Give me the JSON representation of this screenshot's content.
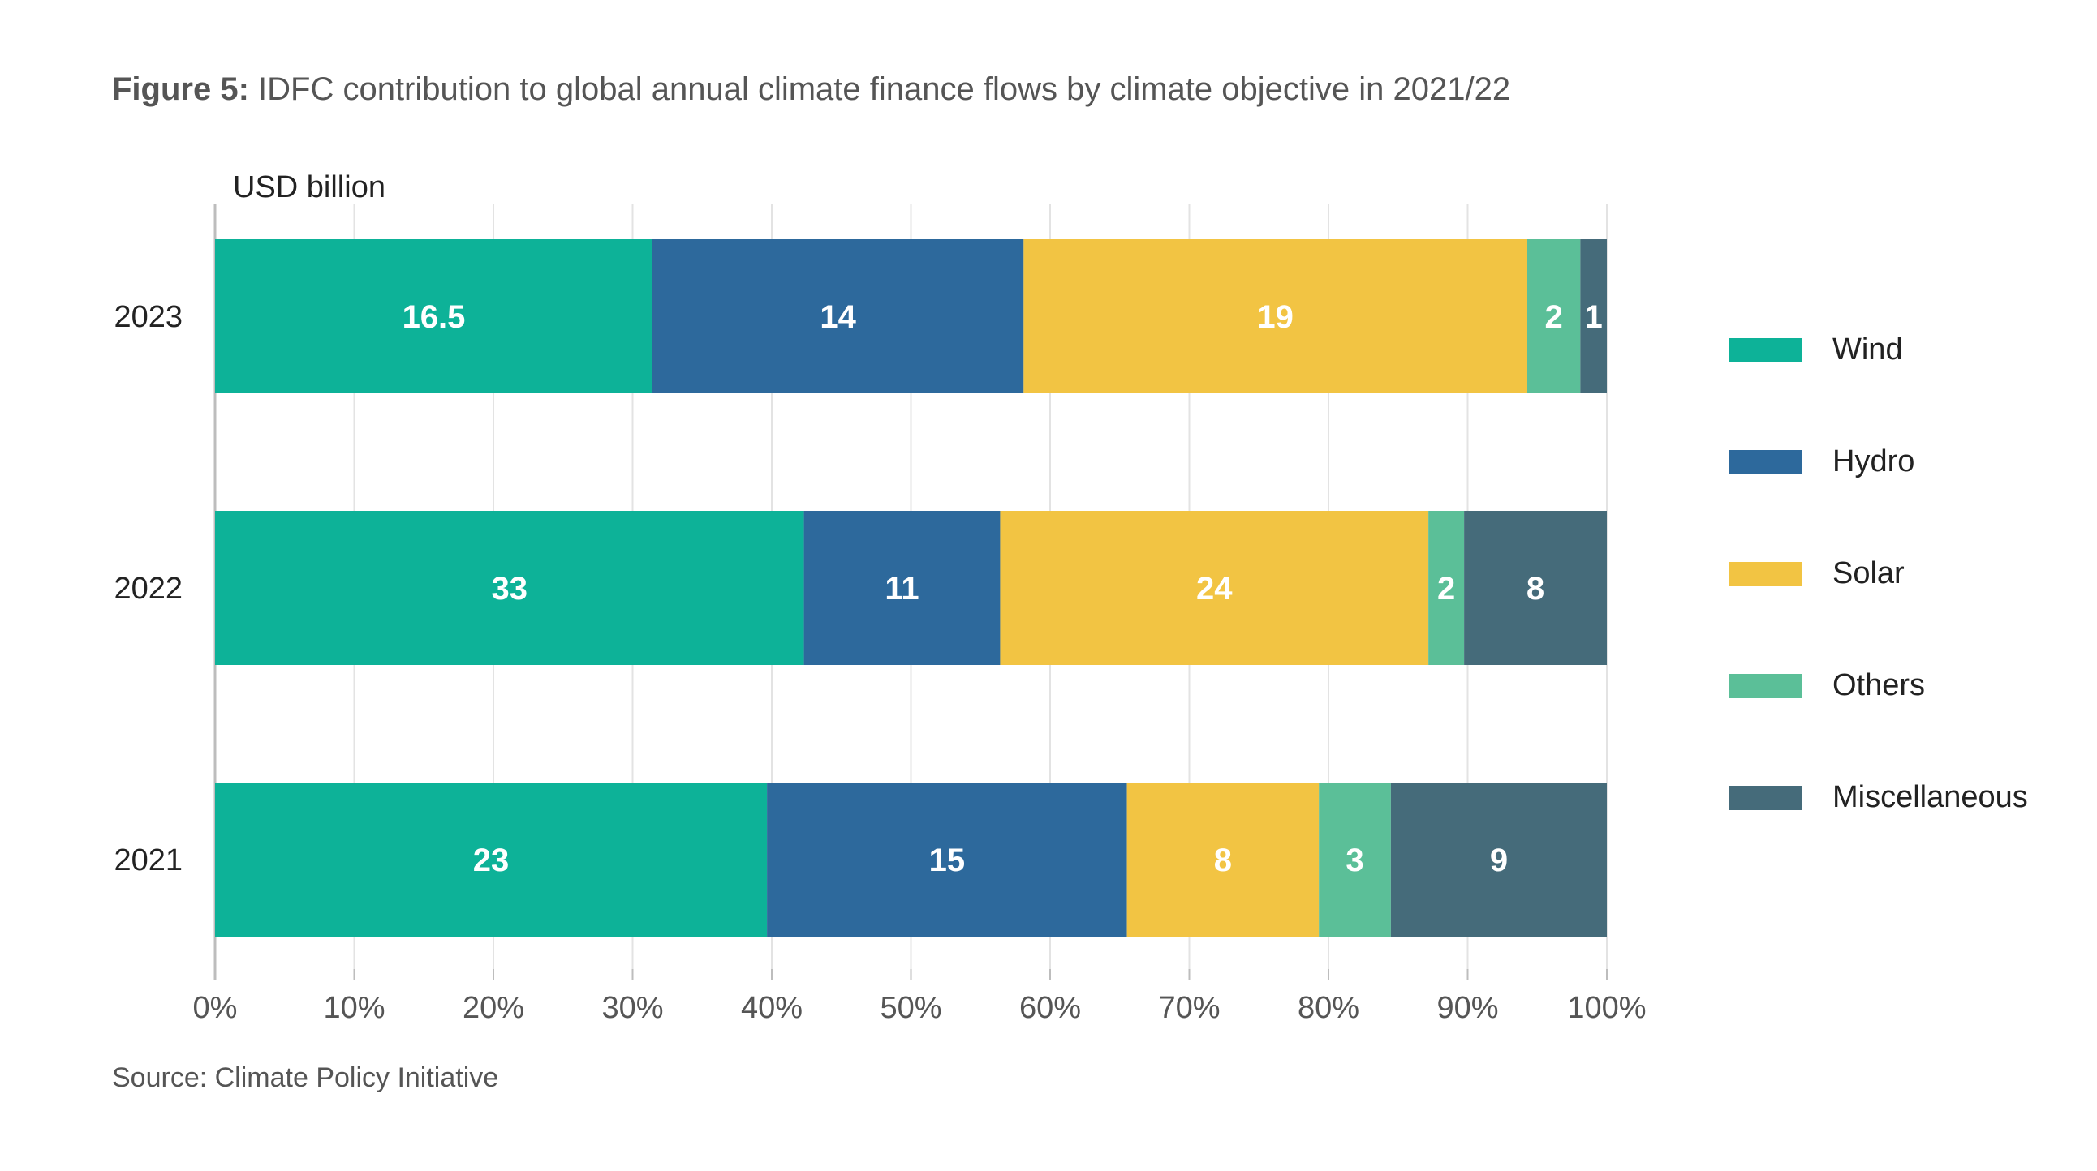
{
  "figure": {
    "label": "Figure 5:",
    "title": " IDFC contribution to global annual climate finance flows by climate objective in 2021/22",
    "source": "Source: Climate Policy Initiative"
  },
  "chart_data": {
    "type": "bar",
    "orientation": "horizontal",
    "stacked": "percent",
    "ylabel": "USD billion",
    "categories": [
      "2023",
      "2022",
      "2021"
    ],
    "series": [
      {
        "name": "Wind",
        "color": "#0db298",
        "values": [
          16.5,
          33,
          23
        ]
      },
      {
        "name": "Hydro",
        "color": "#2d699c",
        "values": [
          14,
          11,
          15
        ]
      },
      {
        "name": "Solar",
        "color": "#f2c443",
        "values": [
          19,
          24,
          8
        ]
      },
      {
        "name": "Others",
        "color": "#5bbf98",
        "values": [
          2,
          2,
          3
        ]
      },
      {
        "name": "Miscellaneous",
        "color": "#456b7a",
        "values": [
          1,
          8,
          9
        ]
      }
    ],
    "data_labels": [
      [
        "16.5",
        "14",
        "19",
        "2",
        "1"
      ],
      [
        "33",
        "11",
        "24",
        "2",
        "8"
      ],
      [
        "23",
        "15",
        "8",
        "3",
        "9"
      ]
    ],
    "xticks": [
      "0%",
      "10%",
      "20%",
      "30%",
      "40%",
      "50%",
      "60%",
      "70%",
      "80%",
      "90%",
      "100%"
    ],
    "xlim": [
      0,
      100
    ],
    "grid": "vertical",
    "legend": "right"
  }
}
